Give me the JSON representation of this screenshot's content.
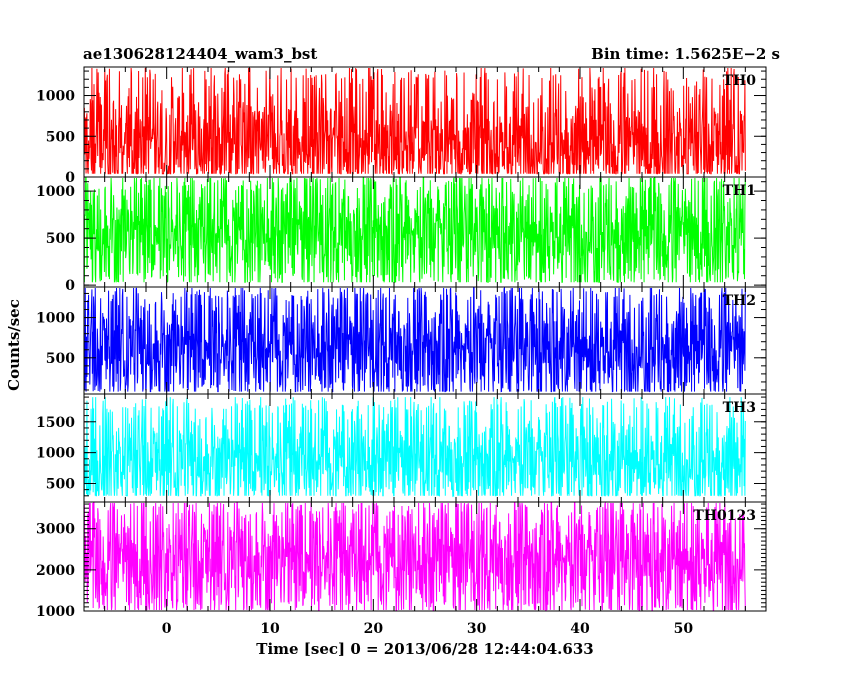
{
  "header": {
    "title": "ae130628124404_wam3_bst",
    "bin_time": "Bin time: 1.5625E−2 s"
  },
  "chart_data": {
    "type": "line",
    "title": "ae130628124404_wam3_bst",
    "subtitle": "Bin time: 1.5625E−2 s",
    "xlabel": "Time [sec] 0 = 2013/06/28 12:44:04.633",
    "ylabel": "Counts/sec",
    "xlim": [
      -8,
      58
    ],
    "x_ticks": [
      0,
      10,
      20,
      30,
      40,
      50
    ],
    "data_x_range": [
      -8,
      56
    ],
    "grid": false,
    "panels": [
      {
        "name": "TH0",
        "color": "#ff0000",
        "ylim": [
          0,
          1350
        ],
        "y_ticks": [
          0,
          500,
          1000
        ],
        "mean": 420,
        "low": 40,
        "high": 1350
      },
      {
        "name": "TH1",
        "color": "#00ff00",
        "ylim": [
          -20,
          1150
        ],
        "y_ticks": [
          0,
          500,
          1000
        ],
        "mean": 560,
        "low": 30,
        "high": 1150
      },
      {
        "name": "TH2",
        "color": "#0000ff",
        "ylim": [
          50,
          1380
        ],
        "y_ticks": [
          500,
          1000
        ],
        "mean": 630,
        "low": 80,
        "high": 1380
      },
      {
        "name": "TH3",
        "color": "#00ffff",
        "ylim": [
          200,
          1950
        ],
        "y_ticks": [
          500,
          1000,
          1500
        ],
        "mean": 880,
        "low": 300,
        "high": 1900
      },
      {
        "name": "TH0123",
        "color": "#ff00ff",
        "ylim": [
          1000,
          3650
        ],
        "y_ticks": [
          1000,
          2000,
          3000
        ],
        "mean": 2250,
        "low": 1000,
        "high": 3650
      }
    ]
  }
}
